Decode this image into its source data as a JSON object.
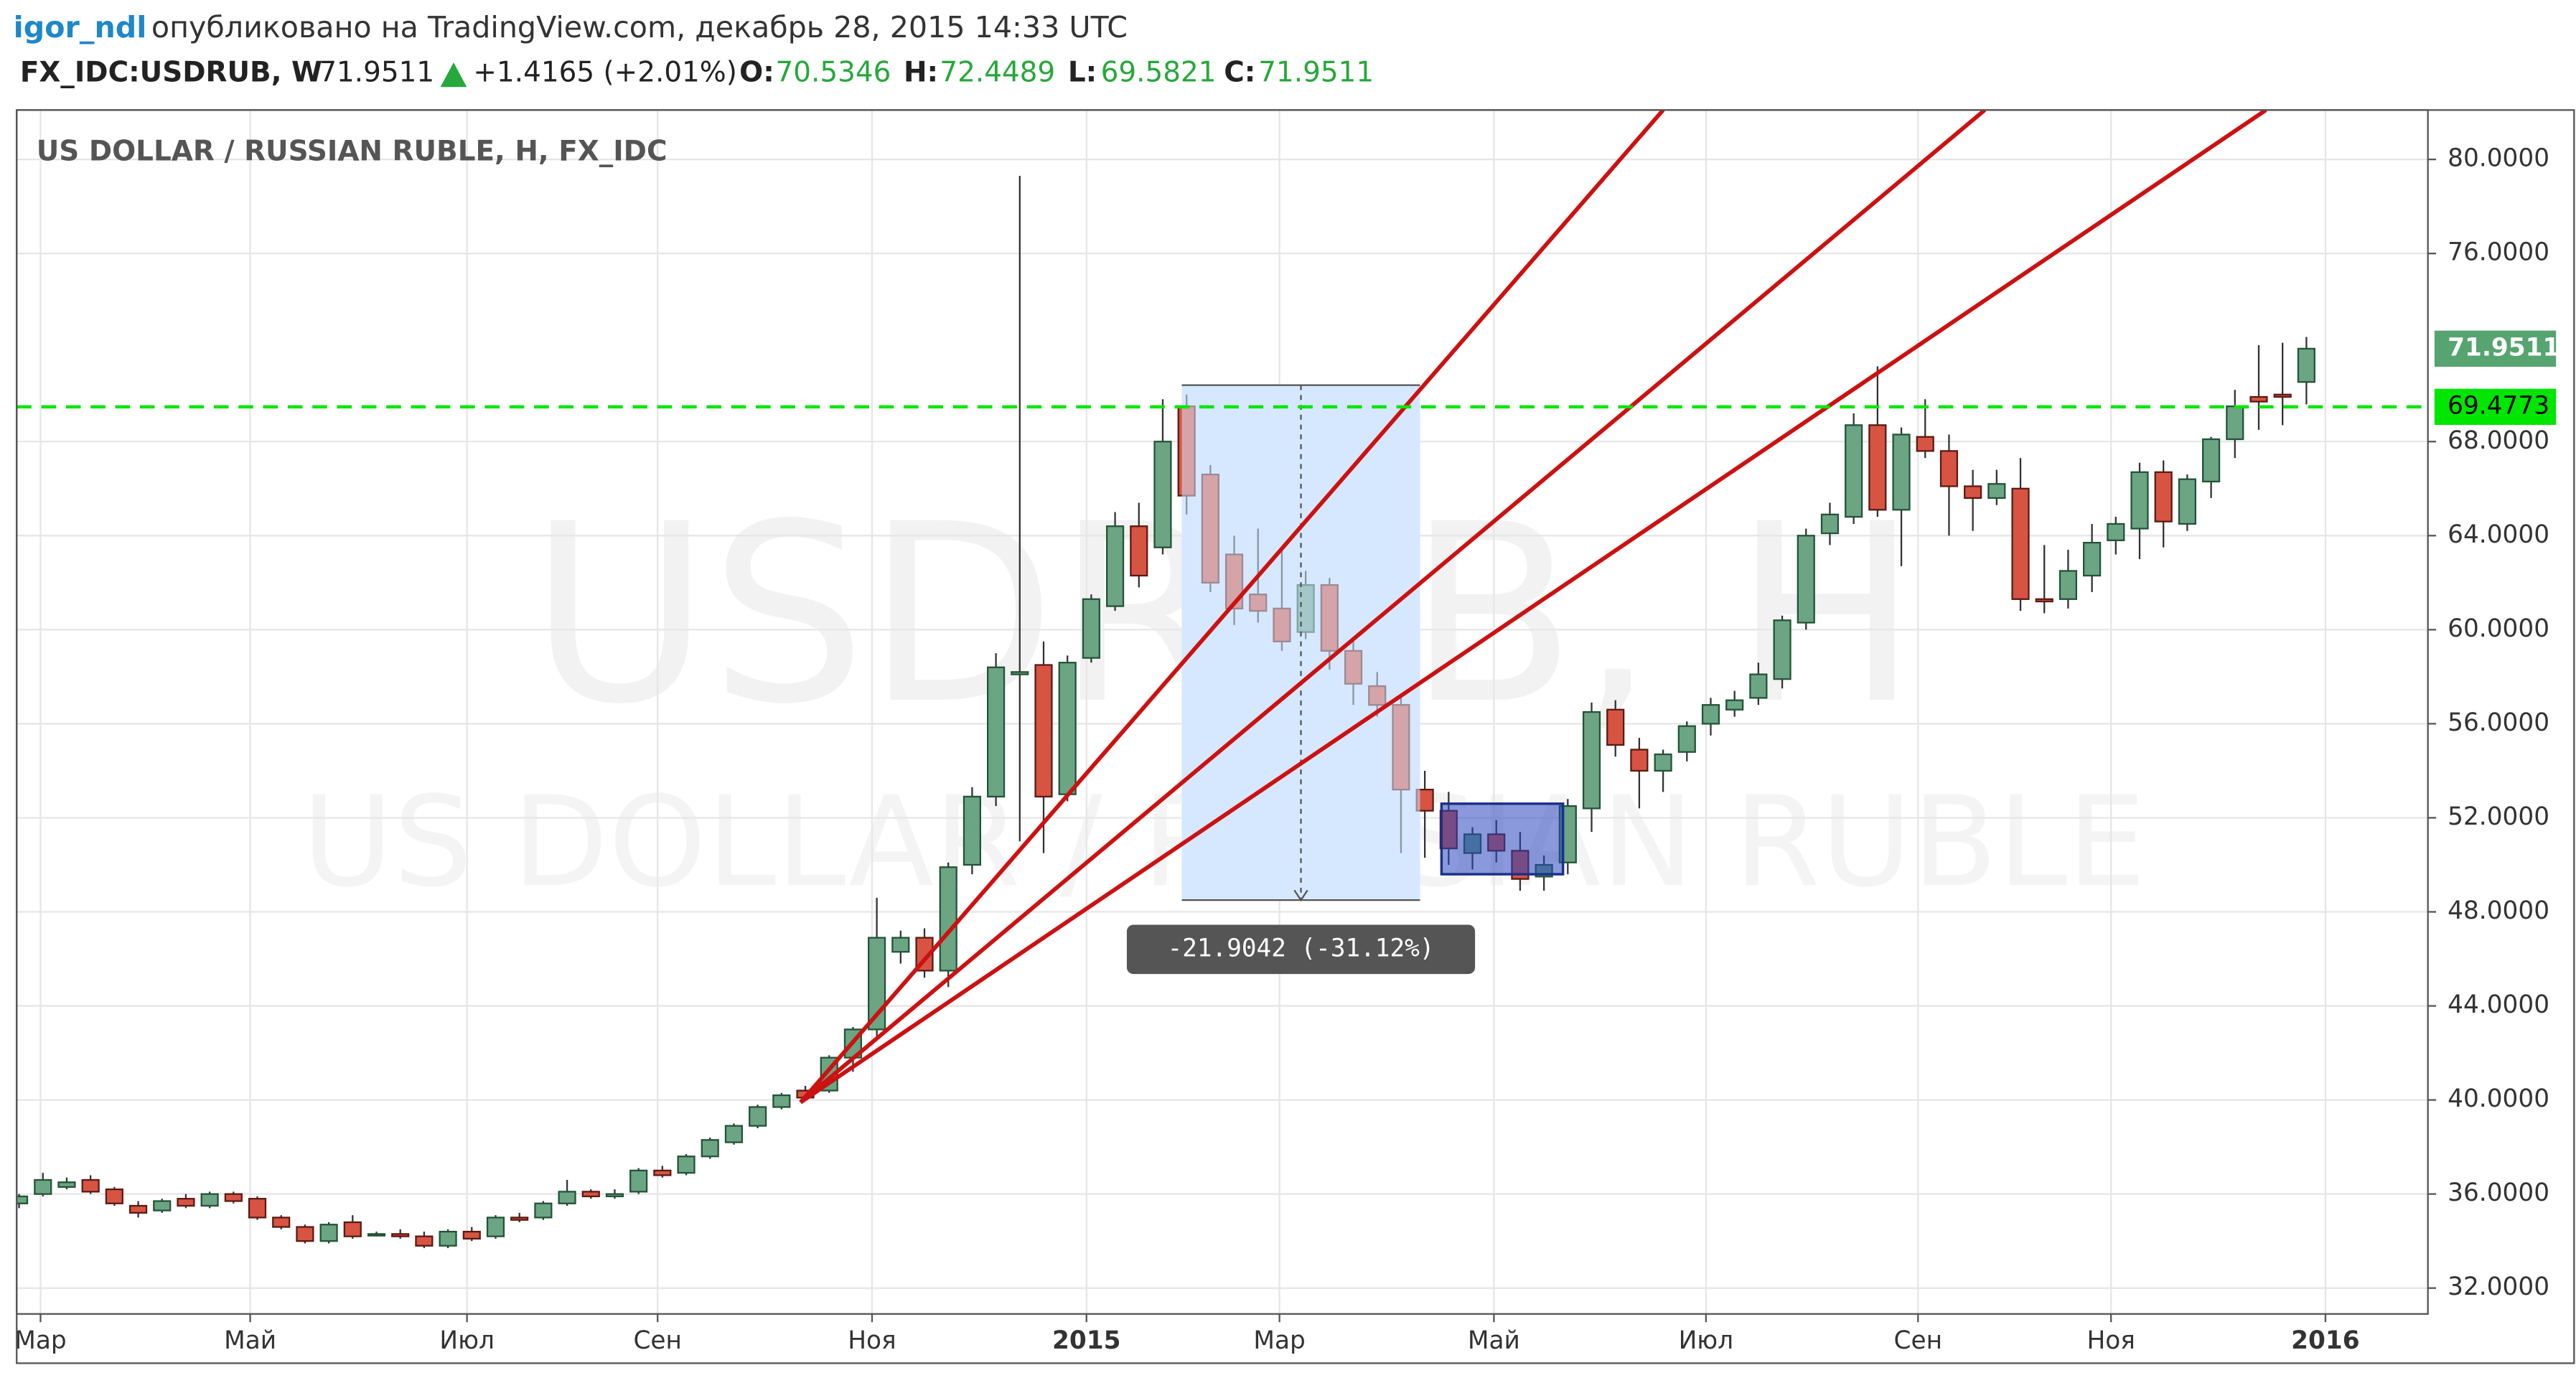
{
  "header": {
    "author": "igor_ndl",
    "published": "опубликовано на TradingView.com, декабрь 28, 2015 14:33 UTC"
  },
  "legend": {
    "symbol": "FX_IDC:USDRUB, W",
    "change": "+1.4165 (+2.01%)",
    "open_label": "O:",
    "high_label": "H:",
    "low_label": "L:",
    "close_label": "C:"
  },
  "chart_data": {
    "type": "candlestick",
    "title": "US DOLLAR / RUSSIAN RUBLE, H, FX_IDC",
    "watermark": [
      "USDRUB, H",
      "US DOLLAR / RUSSIAN RUBLE"
    ],
    "x": [
      0,
      1,
      2,
      3,
      4,
      5,
      6,
      7,
      8,
      9,
      10,
      11,
      12,
      13,
      14,
      15,
      16,
      17,
      18,
      19,
      20,
      21,
      22,
      23,
      24,
      25,
      26,
      27,
      28,
      29,
      30,
      31,
      32,
      33,
      34,
      35,
      36,
      37,
      38,
      39,
      40,
      41,
      42,
      43,
      44,
      45,
      46,
      47,
      48,
      49,
      50,
      51,
      52,
      53,
      54,
      55,
      56,
      57,
      58,
      59,
      60,
      61,
      62,
      63,
      64,
      65,
      66,
      67,
      68,
      69,
      70,
      71,
      72,
      73,
      74,
      75,
      76,
      77,
      78,
      79,
      80,
      81,
      82,
      83,
      84,
      85,
      86,
      87,
      88,
      89,
      90,
      91,
      92,
      93,
      94,
      95,
      96
    ],
    "open": [
      35.6,
      36.0,
      36.3,
      36.6,
      36.2,
      35.5,
      35.3,
      35.8,
      35.5,
      36.0,
      35.8,
      35.0,
      34.6,
      34.0,
      34.8,
      34.3,
      34.3,
      34.2,
      33.8,
      34.4,
      34.2,
      35.0,
      35.0,
      35.6,
      36.1,
      35.9,
      36.1,
      37.0,
      36.9,
      37.6,
      38.2,
      38.9,
      39.7,
      40.4,
      40.4,
      41.8,
      43.0,
      46.3,
      46.9,
      45.5,
      50.0,
      52.9,
      58.1,
      58.5,
      53.0,
      58.8,
      61.0,
      64.4,
      63.5,
      69.5,
      66.6,
      63.2,
      61.5,
      60.9,
      59.9,
      61.9,
      59.1,
      57.6,
      56.8,
      53.2,
      52.3,
      50.5,
      51.3,
      50.6,
      49.5,
      50.1,
      52.4,
      56.6,
      54.9,
      54.0,
      54.8,
      56.0,
      56.6,
      57.1,
      57.9,
      60.3,
      64.1,
      64.8,
      68.7,
      65.1,
      68.2,
      67.6,
      66.1,
      65.6,
      66.0,
      61.3,
      61.3,
      62.3,
      63.8,
      64.3,
      66.7,
      64.5,
      66.3,
      68.1,
      69.9,
      70.0,
      70.5346
    ],
    "high": [
      36.0,
      36.9,
      36.7,
      36.8,
      36.3,
      35.7,
      35.8,
      36.0,
      36.1,
      36.1,
      35.9,
      35.1,
      34.7,
      34.8,
      35.1,
      34.4,
      34.5,
      34.4,
      34.5,
      34.6,
      35.1,
      35.2,
      35.7,
      36.6,
      36.2,
      36.2,
      37.1,
      37.2,
      37.7,
      38.4,
      39.0,
      39.8,
      40.3,
      40.6,
      41.9,
      43.1,
      48.6,
      47.2,
      47.3,
      50.1,
      53.3,
      59.0,
      79.3,
      59.5,
      58.9,
      61.5,
      65.0,
      65.4,
      69.8,
      70.0,
      67.0,
      64.0,
      64.3,
      63.5,
      62.5,
      62.2,
      59.6,
      58.2,
      57.2,
      54.0,
      53.1,
      51.6,
      51.9,
      51.4,
      50.4,
      52.8,
      56.9,
      57.0,
      55.4,
      54.9,
      56.1,
      57.1,
      57.4,
      58.6,
      60.6,
      64.3,
      65.4,
      69.2,
      71.2,
      68.6,
      69.8,
      68.3,
      66.8,
      66.8,
      67.3,
      63.6,
      63.4,
      64.5,
      64.8,
      67.1,
      67.2,
      66.6,
      68.2,
      70.2,
      72.1,
      72.2,
      72.4489
    ],
    "low": [
      35.4,
      35.9,
      36.2,
      36.0,
      35.5,
      35.0,
      35.2,
      35.4,
      35.4,
      35.6,
      34.9,
      34.5,
      33.9,
      33.9,
      34.1,
      34.2,
      34.1,
      33.7,
      33.7,
      34.0,
      34.1,
      34.8,
      34.9,
      35.5,
      35.8,
      35.8,
      36.0,
      36.7,
      36.8,
      37.5,
      38.1,
      38.8,
      39.6,
      40.0,
      40.3,
      41.2,
      42.6,
      45.8,
      45.2,
      44.8,
      49.6,
      52.5,
      51.0,
      50.5,
      52.7,
      58.6,
      60.8,
      61.8,
      63.2,
      64.9,
      61.6,
      60.2,
      60.3,
      59.1,
      59.6,
      58.3,
      56.8,
      56.3,
      50.5,
      50.3,
      50.0,
      49.8,
      50.1,
      48.9,
      48.9,
      49.6,
      51.4,
      54.6,
      52.4,
      53.1,
      54.4,
      55.5,
      56.3,
      56.8,
      57.5,
      60.0,
      63.6,
      64.5,
      64.8,
      62.7,
      67.3,
      64.0,
      64.2,
      65.3,
      60.8,
      60.7,
      60.9,
      61.6,
      63.2,
      63.0,
      63.5,
      64.2,
      65.6,
      67.3,
      68.5,
      68.7,
      69.5821
    ],
    "close": [
      35.9,
      36.6,
      36.5,
      36.1,
      35.6,
      35.2,
      35.7,
      35.5,
      36.0,
      35.7,
      35.0,
      34.6,
      34.0,
      34.7,
      34.2,
      34.3,
      34.2,
      33.8,
      34.4,
      34.1,
      35.0,
      34.9,
      35.6,
      36.1,
      35.9,
      36.0,
      37.0,
      36.8,
      37.6,
      38.3,
      38.9,
      39.7,
      40.2,
      40.1,
      41.8,
      43.0,
      46.9,
      46.9,
      45.5,
      49.9,
      52.9,
      58.4,
      58.2,
      52.9,
      58.6,
      61.3,
      64.4,
      62.3,
      68.0,
      65.7,
      62.0,
      60.9,
      60.8,
      59.5,
      61.9,
      59.1,
      57.7,
      56.8,
      53.2,
      52.3,
      50.7,
      51.3,
      50.6,
      49.4,
      50.0,
      52.5,
      56.5,
      55.1,
      54.0,
      54.7,
      55.9,
      56.8,
      57.0,
      58.1,
      60.4,
      64.0,
      64.9,
      68.7,
      65.1,
      68.3,
      67.6,
      66.1,
      65.6,
      66.2,
      61.3,
      61.2,
      62.5,
      63.7,
      64.5,
      66.7,
      64.6,
      66.4,
      68.1,
      69.5,
      69.7,
      69.9,
      71.9511
    ],
    "up_color": "#6ba583",
    "down_color": "#d75442",
    "xlim": [
      -0.1,
      101.1
    ],
    "xticks": [
      {
        "value": 0.9,
        "label": "Мар"
      },
      {
        "value": 9.7,
        "label": "Май"
      },
      {
        "value": 18.8,
        "label": "Июл"
      },
      {
        "value": 26.8,
        "label": "Сен"
      },
      {
        "value": 35.8,
        "label": "Ноя"
      },
      {
        "value": 44.8,
        "label": "2015"
      },
      {
        "value": 52.9,
        "label": "Мар"
      },
      {
        "value": 61.9,
        "label": "Май"
      },
      {
        "value": 70.8,
        "label": "Июл"
      },
      {
        "value": 79.7,
        "label": "Сен"
      },
      {
        "value": 87.8,
        "label": "Ноя"
      },
      {
        "value": 96.8,
        "label": "2016"
      }
    ],
    "ylim": [
      30.9,
      82.1
    ],
    "yticks": [
      {
        "value": 32,
        "label": "32.0000"
      },
      {
        "value": 36,
        "label": "36.0000"
      },
      {
        "value": 40,
        "label": "40.0000"
      },
      {
        "value": 44,
        "label": "44.0000"
      },
      {
        "value": 48,
        "label": "48.0000"
      },
      {
        "value": 52,
        "label": "52.0000"
      },
      {
        "value": 56,
        "label": "56.0000"
      },
      {
        "value": 60,
        "label": "60.0000"
      },
      {
        "value": 64,
        "label": "64.0000"
      },
      {
        "value": 68,
        "label": "68.0000"
      },
      {
        "value": 76,
        "label": "76.0000"
      },
      {
        "value": 80,
        "label": "80.0000"
      }
    ],
    "grid": true,
    "hline": {
      "value": 69.4773,
      "color": "#00e600"
    },
    "measure": {
      "x": [
        48.8,
        58.8
      ],
      "y": [
        70.4,
        48.5
      ],
      "label": "-21.9042 (-31.12%)"
    },
    "range_box": {
      "x": [
        59.7,
        64.8
      ],
      "y": [
        52.6,
        49.6
      ]
    },
    "fan": {
      "origin": [
        32.8,
        39.9
      ],
      "ends": [
        [
          69.0,
          82.1
        ],
        [
          82.5,
          82.1
        ],
        [
          94.3,
          82.1
        ]
      ],
      "color": "#cc1111"
    }
  }
}
